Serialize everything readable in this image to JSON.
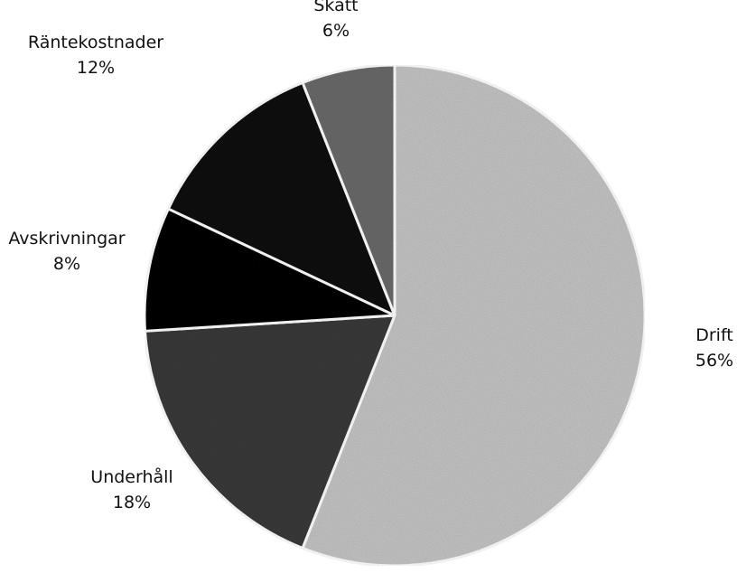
{
  "chart_data": {
    "type": "pie",
    "categories": [
      "Drift",
      "Underhåll",
      "Avskrivningar",
      "Räntekostnader",
      "Skatt"
    ],
    "values": [
      56,
      18,
      8,
      12,
      6
    ],
    "value_labels": [
      "56%",
      "18%",
      "8%",
      "12%",
      "6%"
    ],
    "start": "12 o'clock",
    "direction": "clockwise",
    "slice_colors": [
      "#c4c4c4",
      "#3a3a3a",
      "#0c0c0c",
      "#141414",
      "#6a6a6a"
    ],
    "slice_edge_color": "#ffffff",
    "legend": "none",
    "data_labels": "outside, name above percentage",
    "title": ""
  }
}
